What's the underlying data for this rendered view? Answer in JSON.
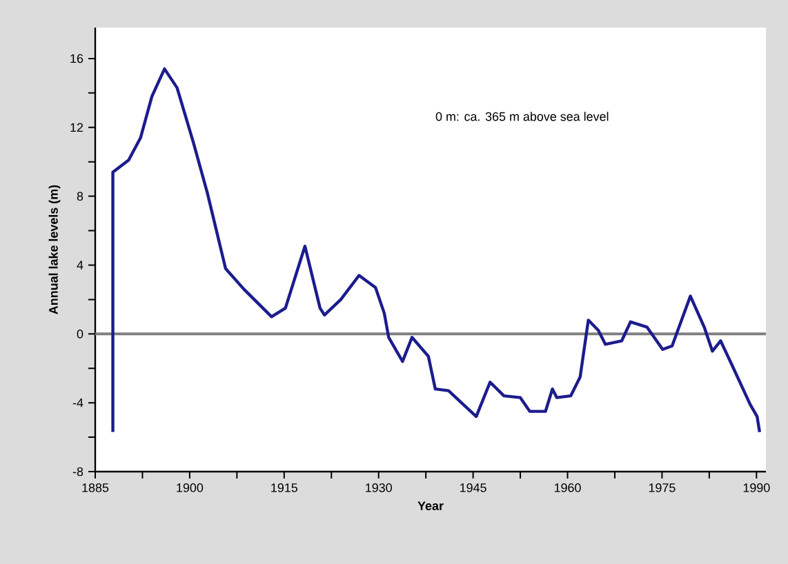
{
  "chart_data": {
    "type": "line",
    "xlabel": "Year",
    "ylabel": "Annual lake levels (m)",
    "annotations": [
      "0 m: ca. 365 m above sea level"
    ],
    "xlim": [
      1885,
      1991.5
    ],
    "ylim": [
      -8,
      17.8
    ],
    "xticks": [
      1885,
      {
        "value": 1892.5,
        "label": null
      },
      1900,
      {
        "value": 1907.5,
        "label": null
      },
      1915,
      {
        "value": 1922.5,
        "label": null
      },
      1930,
      {
        "value": 1937.5,
        "label": null
      },
      1945,
      {
        "value": 1952.5,
        "label": null
      },
      1960,
      {
        "value": 1967.5,
        "label": null
      },
      1975,
      {
        "value": 1982.5,
        "label": null
      },
      1990
    ],
    "yticks": [
      -8,
      {
        "value": -6,
        "label": null
      },
      -4,
      {
        "value": -2,
        "label": null
      },
      0,
      {
        "value": 2,
        "label": null
      },
      4,
      {
        "value": 6,
        "label": null
      },
      8,
      {
        "value": 10,
        "label": null
      },
      12,
      {
        "value": 14,
        "label": null
      },
      16
    ],
    "grid": false,
    "marker": "none",
    "line_style": "solid",
    "ref_lines": [
      {
        "axis": "y",
        "value": 0,
        "color": "#7f7f7f"
      }
    ],
    "series": [
      {
        "color": "#1c1c8e",
        "x": [
          1887.8,
          1887.8,
          1890.3,
          1892.2,
          1894,
          1896,
          1898,
          1900.6,
          1902.8,
          1905.7,
          1908.6,
          1913,
          1915.2,
          1918.3,
          1920.7,
          1921.4,
          1924,
          1926.9,
          1929.5,
          1930.9,
          1931.6,
          1933.8,
          1935.3,
          1937.9,
          1939,
          1941.1,
          1945.5,
          1947.7,
          1949.9,
          1952.5,
          1954,
          1956.5,
          1957.6,
          1958.3,
          1960.5,
          1962,
          1963.3,
          1964.9,
          1966,
          1968.6,
          1970,
          1972.6,
          1975.1,
          1976.6,
          1979.5,
          1981.7,
          1983,
          1984.3,
          1986.1,
          1989,
          1990.1,
          1990.5
        ],
        "values": [
          -5.7,
          9.4,
          10.1,
          11.4,
          13.8,
          15.4,
          14.3,
          11.1,
          8.2,
          3.8,
          2.6,
          1.0,
          1.5,
          5.1,
          1.5,
          1.1,
          2.0,
          3.4,
          2.7,
          1.2,
          -0.2,
          -1.6,
          -0.2,
          -1.3,
          -3.2,
          -3.3,
          -4.8,
          -2.8,
          -3.6,
          -3.7,
          -4.5,
          -4.5,
          -3.2,
          -3.7,
          -3.6,
          -2.5,
          0.8,
          0.2,
          -0.6,
          -0.4,
          0.7,
          0.4,
          -0.9,
          -0.7,
          2.2,
          0.4,
          -1.0,
          -0.4,
          -1.8,
          -4.1,
          -4.8,
          -5.7
        ]
      }
    ]
  }
}
